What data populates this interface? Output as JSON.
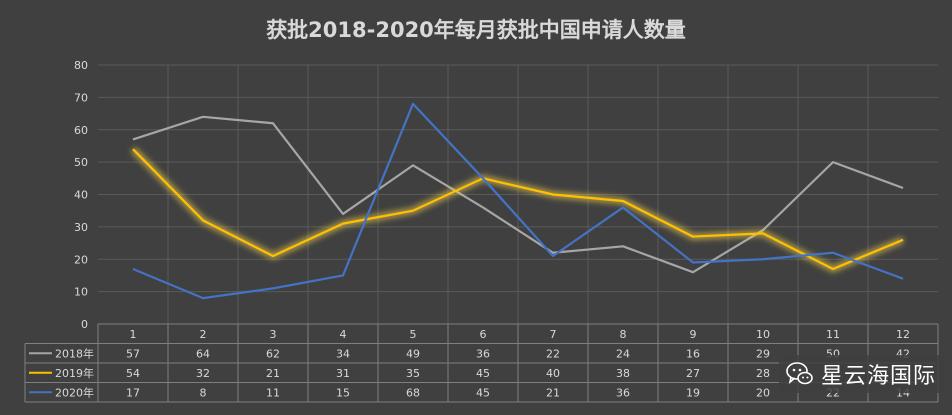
{
  "chart_data": {
    "type": "line",
    "title": "获批2018-2020年每月获批中国申请人数量",
    "categories": [
      "1",
      "2",
      "3",
      "4",
      "5",
      "6",
      "7",
      "8",
      "9",
      "10",
      "11",
      "12"
    ],
    "ylim": [
      0,
      80
    ],
    "yticks": [
      0,
      10,
      20,
      30,
      40,
      50,
      60,
      70,
      80
    ],
    "grid": true,
    "legend": "data-table",
    "series": [
      {
        "name": "2018年",
        "color": "#a6a6a6",
        "values": [
          57,
          64,
          62,
          34,
          49,
          36,
          22,
          24,
          16,
          29,
          50,
          42
        ]
      },
      {
        "name": "2019年",
        "color": "#ffc000",
        "values": [
          54,
          32,
          21,
          31,
          35,
          45,
          40,
          38,
          27,
          28,
          17,
          26
        ]
      },
      {
        "name": "2020年",
        "color": "#4472c4",
        "values": [
          17,
          8,
          11,
          15,
          68,
          45,
          21,
          36,
          19,
          20,
          22,
          14
        ]
      }
    ]
  },
  "watermark": {
    "text": "星云海国际",
    "icon": "wechat-icon"
  }
}
